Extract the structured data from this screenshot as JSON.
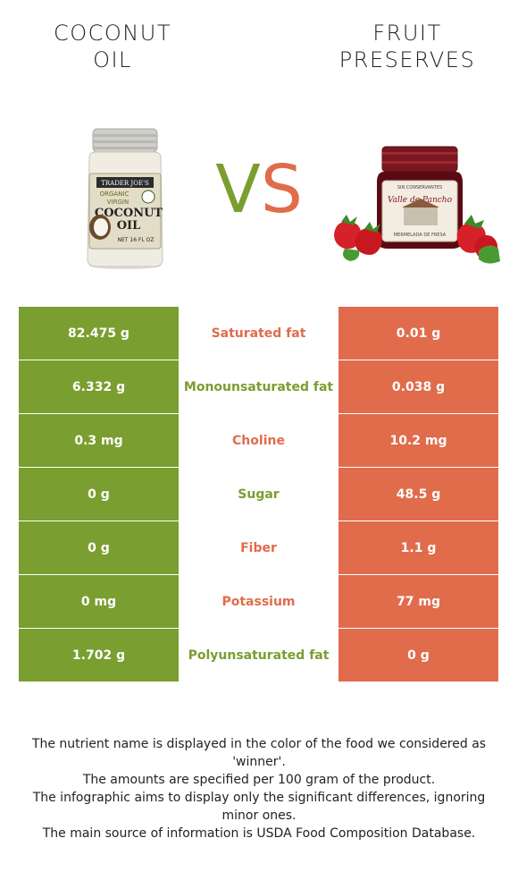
{
  "left_food": {
    "title_line1": "COCONUT",
    "title_line2": "OIL",
    "color": "#7a9e30"
  },
  "right_food": {
    "title_line1": "FRUIT",
    "title_line2": "PRESERVES",
    "color": "#e06c4c"
  },
  "vs": {
    "v": "V",
    "s": "S"
  },
  "jar_label": {
    "brand": "TRADER JOE'S",
    "organic": "ORGANIC",
    "virgin": "VIRGIN",
    "name1": "COCONUT",
    "name2": "OIL",
    "net": "NET 16 FL OZ"
  },
  "preserves_label": {
    "top": "SIN CONSERVANTES",
    "name": "Valle de Pancho",
    "bottom": "MERMELADA DE FRESA"
  },
  "rows": [
    {
      "left": "82.475 g",
      "name": "Saturated fat",
      "right": "0.01 g",
      "winner": "right"
    },
    {
      "left": "6.332 g",
      "name": "Monounsaturated fat",
      "right": "0.038 g",
      "winner": "left"
    },
    {
      "left": "0.3 mg",
      "name": "Choline",
      "right": "10.2 mg",
      "winner": "right"
    },
    {
      "left": "0 g",
      "name": "Sugar",
      "right": "48.5 g",
      "winner": "left"
    },
    {
      "left": "0 g",
      "name": "Fiber",
      "right": "1.1 g",
      "winner": "right"
    },
    {
      "left": "0 mg",
      "name": "Potassium",
      "right": "77 mg",
      "winner": "right"
    },
    {
      "left": "1.702 g",
      "name": "Polyunsaturated fat",
      "right": "0 g",
      "winner": "left"
    }
  ],
  "notes": [
    "The nutrient name is displayed in the color of the food we considered as 'winner'.",
    "The amounts are specified per 100 gram of the product.",
    "The infographic aims to display only the significant differences, ignoring minor ones.",
    "The main source of information is USDA Food Composition Database."
  ]
}
